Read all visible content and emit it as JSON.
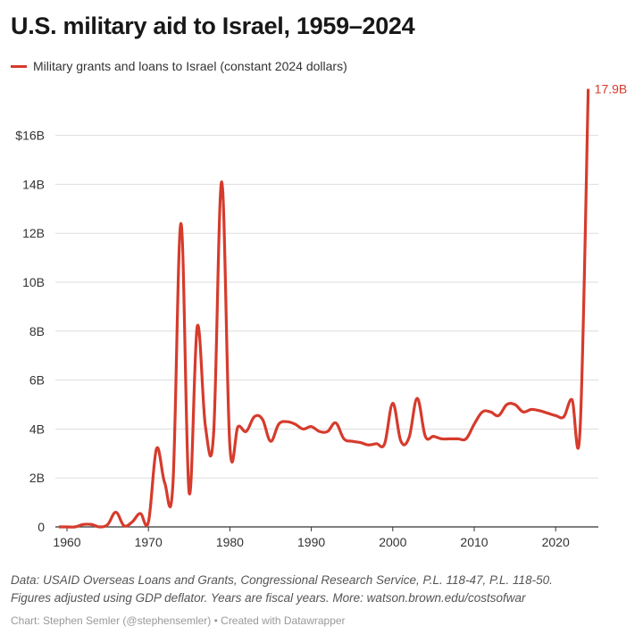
{
  "title": "U.S. military aid to Israel, 1959–2024",
  "notes": [
    "Data: USAID Overseas Loans and Grants, Congressional Research Service, P.L. 118-47, P.L. 118-50.",
    "Figures adjusted using GDP deflator. Years are fiscal years. More: watson.brown.edu/costsofwar"
  ],
  "credit": "Chart: Stephen Semler (@stephensemler) • Created with Datawrapper",
  "chart_data": {
    "type": "line",
    "title": "U.S. military aid to Israel, 1959–2024",
    "xlim": [
      1959,
      2024
    ],
    "ylim": [
      0,
      18
    ],
    "x_ticks": [
      1960,
      1970,
      1980,
      1990,
      2000,
      2010,
      2020
    ],
    "y_ticks": [
      {
        "v": 0,
        "label": "0"
      },
      {
        "v": 2,
        "label": "2B"
      },
      {
        "v": 4,
        "label": "4B"
      },
      {
        "v": 6,
        "label": "6B"
      },
      {
        "v": 8,
        "label": "8B"
      },
      {
        "v": 10,
        "label": "10B"
      },
      {
        "v": 12,
        "label": "12B"
      },
      {
        "v": 14,
        "label": "14B"
      },
      {
        "v": 16,
        "label": "$16B"
      }
    ],
    "grid": true,
    "legend": "top-left",
    "color": "#d63b2c",
    "end_label": "17.9B",
    "series": [
      {
        "name": "Military grants and loans to Israel (constant 2024 dollars)",
        "x_start": 1959,
        "values": [
          0,
          0,
          0,
          0.1,
          0.1,
          0,
          0.1,
          0.6,
          0.05,
          0.2,
          0.55,
          0.2,
          3.2,
          1.8,
          1.7,
          12.4,
          1.4,
          8.2,
          4.1,
          3.8,
          14.1,
          3.3,
          4.1,
          3.9,
          4.5,
          4.4,
          3.5,
          4.2,
          4.3,
          4.2,
          4.0,
          4.1,
          3.9,
          3.9,
          4.25,
          3.6,
          3.5,
          3.45,
          3.35,
          3.4,
          3.4,
          5.05,
          3.5,
          3.65,
          5.25,
          3.7,
          3.7,
          3.6,
          3.6,
          3.6,
          3.6,
          4.2,
          4.7,
          4.7,
          4.55,
          5.0,
          5.0,
          4.7,
          4.8,
          4.75,
          4.65,
          4.55,
          4.5,
          5.2,
          4.0,
          17.9
        ]
      }
    ]
  }
}
